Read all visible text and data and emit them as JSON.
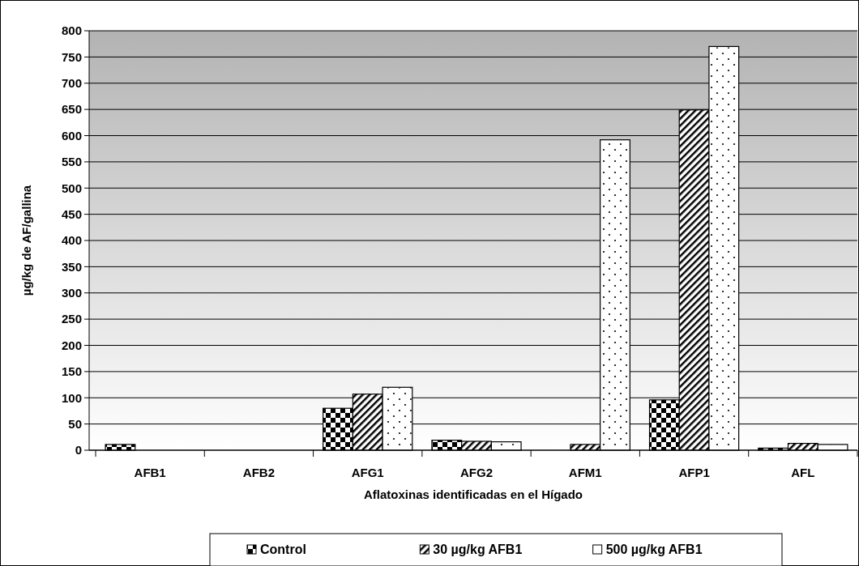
{
  "chart_data": {
    "type": "bar",
    "xlabel": "Aflatoxinas identificadas en el Hígado",
    "ylabel": "µg/kg de AF/gallina",
    "categories": [
      "AFB1",
      "AFB2",
      "AFG1",
      "AFG2",
      "AFM1",
      "AFP1",
      "AFL"
    ],
    "series": [
      {
        "name": "Control",
        "color": "#000000",
        "values": [
          11,
          0,
          80,
          19,
          0,
          96,
          4
        ]
      },
      {
        "name": "30 µg/kg AFB1",
        "color": "#000000",
        "values": [
          0,
          0,
          107,
          17,
          11,
          649,
          13
        ]
      },
      {
        "name": "500 µg/kg AFB1",
        "color": "#ffffff",
        "values": [
          0,
          0,
          120,
          16,
          592,
          770,
          11
        ]
      }
    ],
    "ylim": [
      0,
      800
    ],
    "yticks": [
      0,
      50,
      100,
      150,
      200,
      250,
      300,
      350,
      400,
      450,
      500,
      550,
      600,
      650,
      700,
      750,
      800
    ],
    "grid": "y",
    "legend": "bottom"
  }
}
